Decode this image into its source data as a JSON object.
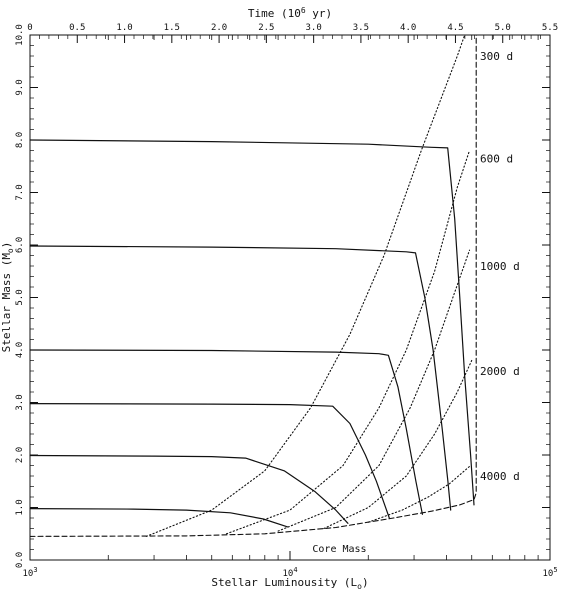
{
  "chart_data": {
    "type": "line",
    "xlabel": "Stellar Luminousity (L",
    "xlabel_sub": "o",
    "xlabel_close": ")",
    "ylabel": "Stellar Mass (M",
    "ylabel_sub": "o",
    "ylabel_close": ")",
    "top_xlabel": "Time (10",
    "top_xlabel_sup": "6",
    "top_xlabel_close": " yr)",
    "x_scale": "log",
    "xlim": [
      1000,
      100000
    ],
    "ylim": [
      0.0,
      10.0
    ],
    "top_xlim": [
      0.0,
      5.5
    ],
    "x_ticks": [
      {
        "value": 1000,
        "base": "10",
        "exp": "3"
      },
      {
        "value": 10000,
        "base": "10",
        "exp": "4"
      },
      {
        "value": 100000,
        "base": "10",
        "exp": "5"
      }
    ],
    "y_ticks": [
      {
        "value": 0.0,
        "label": "0.0"
      },
      {
        "value": 1.0,
        "label": "1.0"
      },
      {
        "value": 2.0,
        "label": "2.0"
      },
      {
        "value": 3.0,
        "label": "3.0"
      },
      {
        "value": 4.0,
        "label": "4.0"
      },
      {
        "value": 5.0,
        "label": "5.0"
      },
      {
        "value": 6.0,
        "label": "6.0"
      },
      {
        "value": 7.0,
        "label": "7.0"
      },
      {
        "value": 8.0,
        "label": "8.0"
      },
      {
        "value": 9.0,
        "label": "9.0"
      },
      {
        "value": 10.0,
        "label": "10.0"
      }
    ],
    "top_ticks": [
      {
        "value": 0.0,
        "label": "0"
      },
      {
        "value": 0.5,
        "label": "0.5"
      },
      {
        "value": 1.0,
        "label": "1.0"
      },
      {
        "value": 1.5,
        "label": "1.5"
      },
      {
        "value": 2.0,
        "label": "2.0"
      },
      {
        "value": 2.5,
        "label": "2.5"
      },
      {
        "value": 3.0,
        "label": "3.0"
      },
      {
        "value": 3.5,
        "label": "3.5"
      },
      {
        "value": 4.0,
        "label": "4.0"
      },
      {
        "value": 4.5,
        "label": "4.5"
      },
      {
        "value": 5.0,
        "label": "5.0"
      },
      {
        "value": 5.5,
        "label": "5.5"
      }
    ],
    "grid": false,
    "series": [
      {
        "style": "solid",
        "points": [
          [
            1000,
            8.0
          ],
          [
            5000,
            7.97
          ],
          [
            20000,
            7.92
          ],
          [
            35000,
            7.86
          ],
          [
            40400,
            7.85
          ],
          [
            43000,
            6.5
          ],
          [
            45000,
            5.0
          ],
          [
            47000,
            3.5
          ],
          [
            49500,
            2.0
          ],
          [
            51000,
            1.05
          ]
        ]
      },
      {
        "style": "solid",
        "points": [
          [
            1000,
            5.98
          ],
          [
            5000,
            5.96
          ],
          [
            15000,
            5.93
          ],
          [
            28000,
            5.87
          ],
          [
            30400,
            5.85
          ],
          [
            33000,
            5.0
          ],
          [
            35500,
            4.0
          ],
          [
            38500,
            2.5
          ],
          [
            40500,
            1.5
          ],
          [
            41500,
            0.95
          ]
        ]
      },
      {
        "style": "solid",
        "points": [
          [
            1000,
            4.0
          ],
          [
            5000,
            3.99
          ],
          [
            15000,
            3.96
          ],
          [
            22000,
            3.93
          ],
          [
            23900,
            3.9
          ],
          [
            26000,
            3.3
          ],
          [
            28000,
            2.5
          ],
          [
            30500,
            1.5
          ],
          [
            32300,
            0.87
          ]
        ]
      },
      {
        "style": "solid",
        "points": [
          [
            1000,
            2.98
          ],
          [
            5000,
            2.97
          ],
          [
            10000,
            2.96
          ],
          [
            14600,
            2.93
          ],
          [
            17000,
            2.6
          ],
          [
            19500,
            2.0
          ],
          [
            21500,
            1.5
          ],
          [
            24100,
            0.8
          ]
        ]
      },
      {
        "style": "solid",
        "points": [
          [
            1000,
            1.99
          ],
          [
            3000,
            1.98
          ],
          [
            5000,
            1.97
          ],
          [
            6750,
            1.94
          ],
          [
            9500,
            1.7
          ],
          [
            12500,
            1.3
          ],
          [
            15000,
            0.95
          ],
          [
            16700,
            0.7
          ]
        ]
      },
      {
        "style": "solid",
        "points": [
          [
            1000,
            0.98
          ],
          [
            2500,
            0.97
          ],
          [
            4000,
            0.95
          ],
          [
            5900,
            0.9
          ],
          [
            7900,
            0.78
          ],
          [
            9800,
            0.63
          ]
        ]
      },
      {
        "style": "dotted",
        "points": [
          [
            2800,
            0.45
          ],
          [
            5000,
            0.95
          ],
          [
            8000,
            1.7
          ],
          [
            12000,
            2.9
          ],
          [
            17000,
            4.3
          ],
          [
            23000,
            5.8
          ],
          [
            32000,
            7.8
          ],
          [
            44000,
            9.6
          ],
          [
            47000,
            10.0
          ]
        ]
      },
      {
        "style": "dotted",
        "points": [
          [
            5700,
            0.5
          ],
          [
            10000,
            0.95
          ],
          [
            16000,
            1.8
          ],
          [
            22000,
            2.9
          ],
          [
            28000,
            4.0
          ],
          [
            36000,
            5.5
          ],
          [
            44000,
            7.1
          ],
          [
            49000,
            7.8
          ]
        ]
      },
      {
        "style": "dotted",
        "points": [
          [
            9000,
            0.55
          ],
          [
            15000,
            1.0
          ],
          [
            22000,
            1.8
          ],
          [
            29000,
            2.9
          ],
          [
            36000,
            4.0
          ],
          [
            43000,
            5.1
          ],
          [
            49000,
            5.9
          ]
        ]
      },
      {
        "style": "dotted",
        "points": [
          [
            13500,
            0.6
          ],
          [
            20000,
            1.0
          ],
          [
            28000,
            1.6
          ],
          [
            36000,
            2.4
          ],
          [
            44000,
            3.2
          ],
          [
            50000,
            3.8
          ]
        ]
      },
      {
        "style": "dotted",
        "points": [
          [
            20000,
            0.72
          ],
          [
            27000,
            0.95
          ],
          [
            34000,
            1.2
          ],
          [
            41000,
            1.45
          ],
          [
            49500,
            1.8
          ]
        ]
      },
      {
        "style": "dashed",
        "points": [
          [
            1000,
            0.45
          ],
          [
            4000,
            0.46
          ],
          [
            8000,
            0.5
          ],
          [
            15000,
            0.62
          ],
          [
            25000,
            0.8
          ],
          [
            35000,
            0.93
          ],
          [
            45000,
            1.05
          ],
          [
            51000,
            1.15
          ],
          [
            52000,
            1.28
          ],
          [
            52000,
            10.0
          ]
        ]
      }
    ],
    "period_labels": [
      {
        "label": "300 d",
        "y": 9.6
      },
      {
        "label": "600 d",
        "y": 7.65
      },
      {
        "label": "1000 d",
        "y": 5.6
      },
      {
        "label": "2000 d",
        "y": 3.6
      },
      {
        "label": "4000 d",
        "y": 1.6
      }
    ],
    "annotations": [
      {
        "label": "Core Mass",
        "x": 15500,
        "y": 0.15
      }
    ]
  }
}
